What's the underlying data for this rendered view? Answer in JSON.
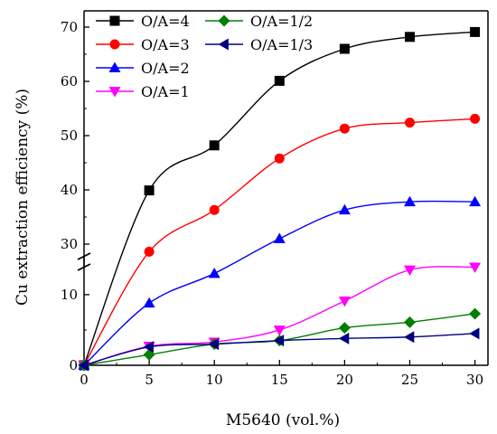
{
  "chart_data": {
    "type": "line",
    "title": "",
    "xlabel": "M5640 (vol.%)",
    "ylabel": "Cu extraction efficiency (%)",
    "xlim": [
      0,
      31
    ],
    "x_ticks": [
      0,
      5,
      10,
      15,
      20,
      25,
      30
    ],
    "y_axis_break": true,
    "y_lower_segment": {
      "range": [
        0,
        16
      ],
      "ticks": [
        0,
        10
      ]
    },
    "y_upper_segment": {
      "range": [
        25,
        73
      ],
      "ticks": [
        30,
        40,
        50,
        60,
        70
      ]
    },
    "grid": false,
    "legend_position": "top-left, two columns",
    "x": [
      0,
      5,
      10,
      15,
      20,
      25,
      30
    ],
    "series": [
      {
        "name": "O/A=4",
        "marker": "square",
        "color": "#000000",
        "values": [
          0,
          39.9,
          48.2,
          60.1,
          66.0,
          68.2,
          69.1
        ]
      },
      {
        "name": "O/A=3",
        "marker": "circle",
        "color": "#ff0000",
        "values": [
          0,
          28.6,
          36.3,
          45.8,
          51.3,
          52.4,
          53.1
        ]
      },
      {
        "name": "O/A=2",
        "marker": "triangle-up",
        "color": "#0000ff",
        "values": [
          0,
          8.8,
          13.0,
          31.0,
          36.3,
          37.8,
          37.8
        ]
      },
      {
        "name": "O/A=1",
        "marker": "triangle-down",
        "color": "#ff00ff",
        "values": [
          0,
          2.7,
          3.3,
          5.0,
          9.1,
          13.5,
          13.9
        ]
      },
      {
        "name": "O/A=1/2",
        "marker": "diamond",
        "color": "#008000",
        "values": [
          0,
          1.5,
          3.0,
          3.5,
          5.3,
          6.1,
          7.3
        ]
      },
      {
        "name": "O/A=1/3",
        "marker": "triangle-left",
        "color": "#000080",
        "values": [
          0,
          2.6,
          3.0,
          3.5,
          3.8,
          4.0,
          4.5
        ]
      }
    ]
  }
}
